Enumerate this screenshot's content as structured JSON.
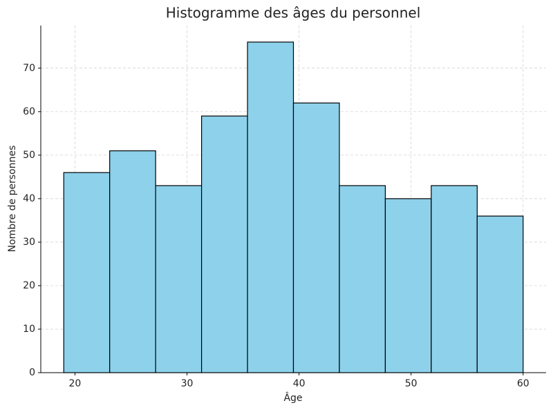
{
  "chart_data": {
    "type": "histogram",
    "title": "Histogramme des âges du personnel",
    "xlabel": "Âge",
    "ylabel": "Nombre de personnes",
    "bins": [
      19,
      23.1,
      27.2,
      31.3,
      35.4,
      39.5,
      43.6,
      47.7,
      51.8,
      55.9,
      60
    ],
    "values": [
      46,
      51,
      43,
      59,
      76,
      62,
      43,
      40,
      43,
      36
    ],
    "color": "#8ed1eb",
    "edgecolor": "#000000",
    "xlim": [
      16.95,
      62.05
    ],
    "xticks": [
      20,
      30,
      40,
      50,
      60
    ],
    "ylim": [
      0,
      79.8
    ],
    "yticks": [
      0,
      10,
      20,
      30,
      40,
      50,
      60,
      70
    ],
    "grid": true
  }
}
